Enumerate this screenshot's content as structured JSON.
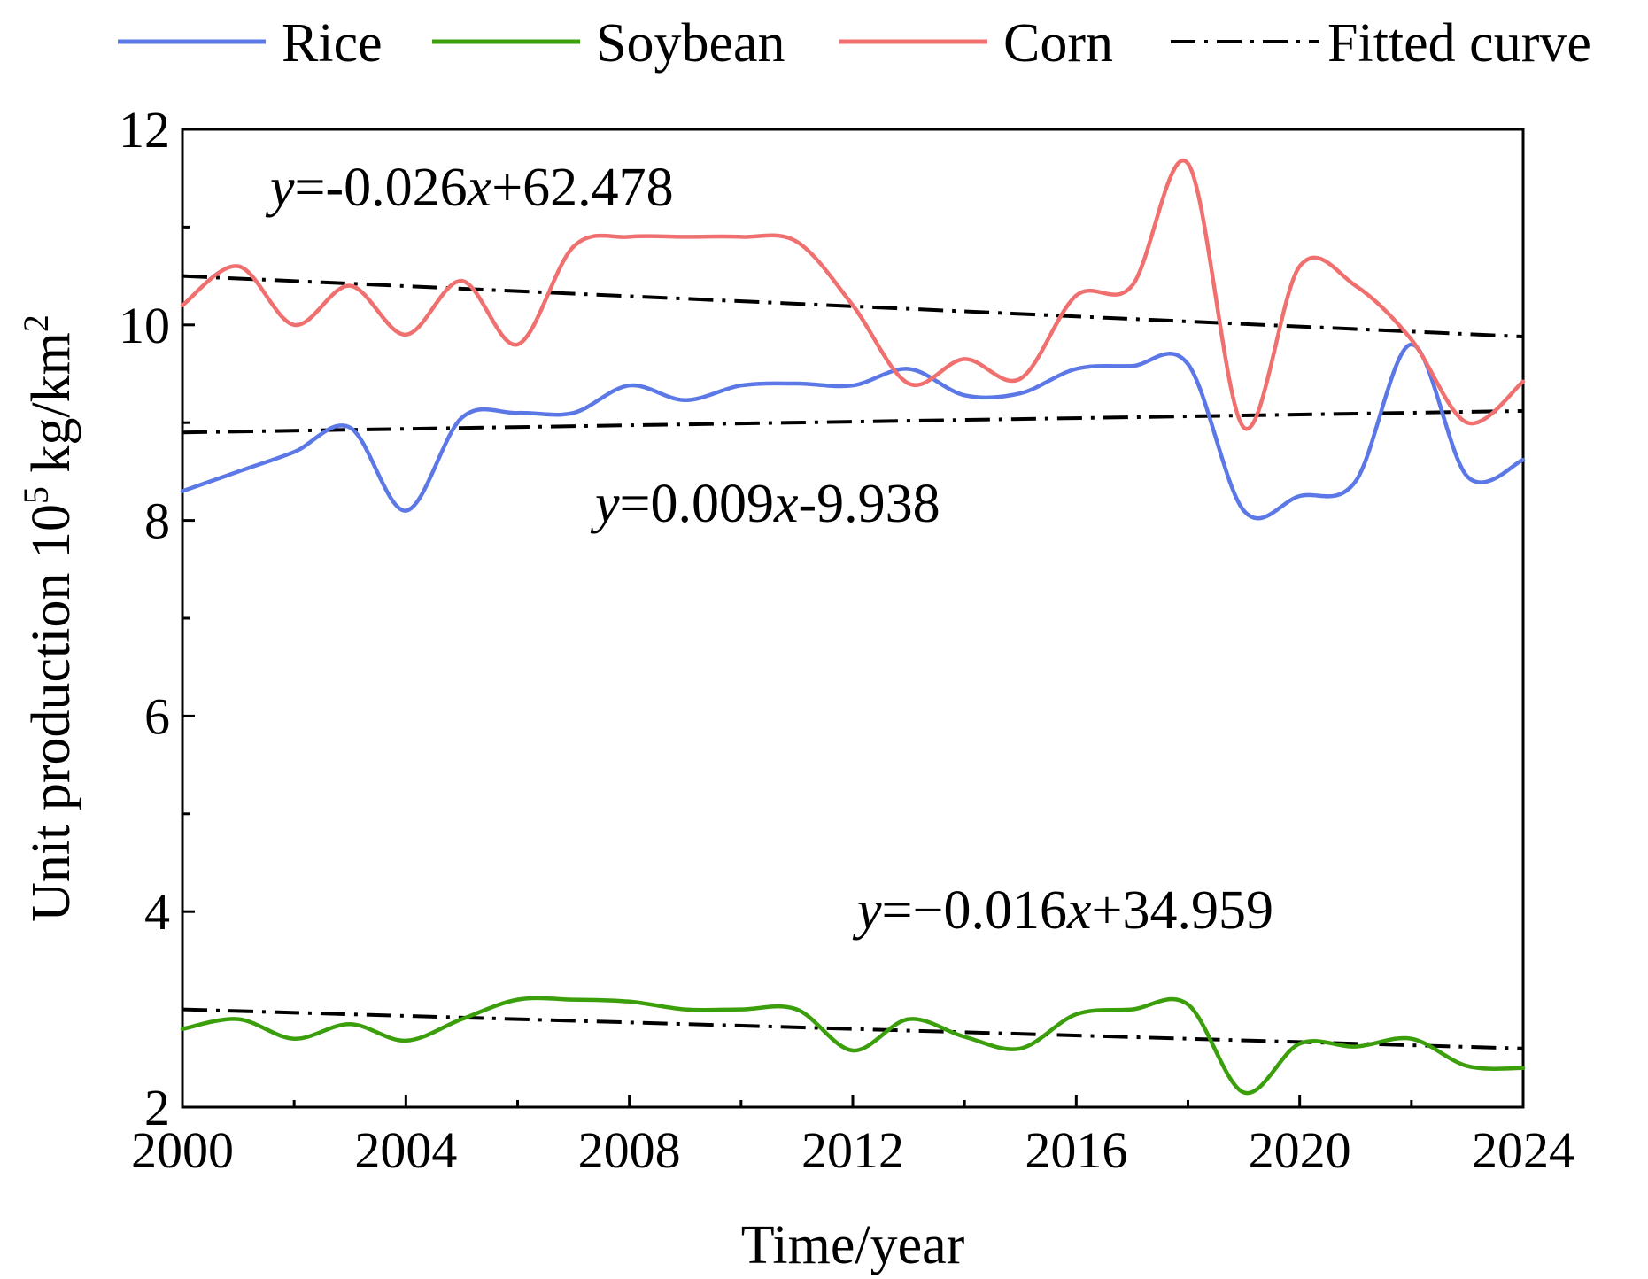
{
  "chart_data": {
    "type": "line",
    "xlabel": "Time/year",
    "ylabel_parts": {
      "main": "Unit production 10",
      "sup1": "5",
      "unit": " kg/km",
      "sup2": "2"
    },
    "xlim": [
      2000,
      2024
    ],
    "ylim": [
      2,
      12
    ],
    "xticks": [
      2000,
      2004,
      2008,
      2012,
      2016,
      2020,
      2024
    ],
    "yticks": [
      2,
      4,
      6,
      8,
      10,
      12
    ],
    "legend": {
      "placement": "top",
      "entries": [
        {
          "label": "Rice",
          "color": "#5b78e6",
          "style": "solid"
        },
        {
          "label": "Soybean",
          "color": "#3a9f0a",
          "style": "solid"
        },
        {
          "label": "Corn",
          "color": "#f07070",
          "style": "solid"
        },
        {
          "label": "Fitted curve",
          "color": "#000000",
          "style": "dash-dot"
        }
      ]
    },
    "series": [
      {
        "name": "Rice",
        "color": "#5b78e6",
        "x": [
          2000,
          2001,
          2002,
          2003,
          2004,
          2005,
          2006,
          2007,
          2008,
          2009,
          2010,
          2011,
          2012,
          2013,
          2014,
          2015,
          2016,
          2017,
          2018,
          2019,
          2020,
          2021,
          2022,
          2023,
          2024
        ],
        "values": [
          8.3,
          8.5,
          8.7,
          8.95,
          8.1,
          9.05,
          9.1,
          9.1,
          9.38,
          9.23,
          9.38,
          9.4,
          9.38,
          9.55,
          9.28,
          9.3,
          9.55,
          9.58,
          9.6,
          8.1,
          8.25,
          8.4,
          9.8,
          8.45,
          8.62
        ]
      },
      {
        "name": "Soybean",
        "color": "#3a9f0a",
        "x": [
          2000,
          2001,
          2002,
          2003,
          2004,
          2005,
          2006,
          2007,
          2008,
          2009,
          2010,
          2011,
          2012,
          2013,
          2014,
          2015,
          2016,
          2017,
          2018,
          2019,
          2020,
          2021,
          2022,
          2023,
          2024
        ],
        "values": [
          2.8,
          2.9,
          2.7,
          2.85,
          2.68,
          2.9,
          3.1,
          3.1,
          3.08,
          3.0,
          3.0,
          3.0,
          2.58,
          2.9,
          2.72,
          2.6,
          2.95,
          3.0,
          3.05,
          2.15,
          2.65,
          2.62,
          2.7,
          2.42,
          2.4
        ]
      },
      {
        "name": "Corn",
        "color": "#f07070",
        "x": [
          2000,
          2001,
          2002,
          2003,
          2004,
          2005,
          2006,
          2007,
          2008,
          2009,
          2010,
          2011,
          2012,
          2013,
          2014,
          2015,
          2016,
          2017,
          2018,
          2019,
          2020,
          2021,
          2022,
          2023,
          2024
        ],
        "values": [
          10.2,
          10.6,
          10.0,
          10.4,
          9.9,
          10.45,
          9.8,
          10.8,
          10.9,
          10.9,
          10.9,
          10.85,
          10.2,
          9.4,
          9.65,
          9.45,
          10.3,
          10.4,
          11.65,
          8.95,
          10.6,
          10.4,
          9.85,
          9.0,
          9.42
        ]
      }
    ],
    "fitted_lines": [
      {
        "x": [
          2000,
          2024
        ],
        "y": [
          10.5,
          9.88
        ]
      },
      {
        "x": [
          2000,
          2024
        ],
        "y": [
          8.9,
          9.12
        ]
      },
      {
        "x": [
          2000,
          2024
        ],
        "y": [
          3.0,
          2.6
        ]
      }
    ],
    "equations": [
      {
        "y": "y",
        "rest1": "=-0.026",
        "x": "x",
        "rest2": "+62.478"
      },
      {
        "y": "y",
        "rest1": "=0.009",
        "x": "x",
        "rest2": "-9.938"
      },
      {
        "y": "y",
        "rest1": "=−0.016",
        "x": "x",
        "rest2": "+34.959"
      }
    ]
  }
}
